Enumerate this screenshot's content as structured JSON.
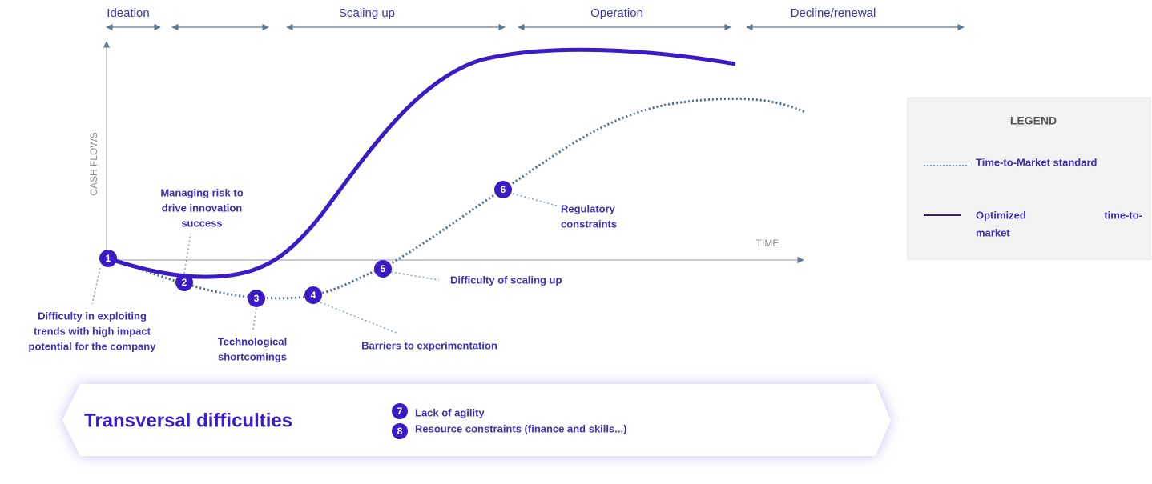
{
  "phases": [
    "Ideation",
    "Scaling up",
    "Operation",
    "Decline/renewal"
  ],
  "axes": {
    "y_label": "CASH FLOWS",
    "x_label": "TIME"
  },
  "points": [
    {
      "number": "1",
      "label": [
        "Difficulty in exploiting",
        "trends with high impact",
        "potential for the company"
      ]
    },
    {
      "number": "2",
      "label": [
        "Managing risk to",
        "drive innovation",
        "success"
      ]
    },
    {
      "number": "3",
      "label": [
        "Technological",
        "shortcomings"
      ]
    },
    {
      "number": "4",
      "label": [
        "Barriers to experimentation"
      ]
    },
    {
      "number": "5",
      "label": [
        "Difficulty of scaling up"
      ]
    },
    {
      "number": "6",
      "label": [
        "Regulatory",
        "constraints"
      ]
    }
  ],
  "legend": {
    "title": "LEGEND",
    "items": [
      {
        "label": [
          "Time-to-Market standard"
        ]
      },
      {
        "label": [
          "Optimized",
          "time-to-",
          "market"
        ]
      }
    ]
  },
  "transversal": {
    "title": "Transversal difficulties",
    "items": [
      {
        "number": "7",
        "label": "Lack of agility"
      },
      {
        "number": "8",
        "label": "Resource constraints (finance and skills...)"
      }
    ]
  }
}
